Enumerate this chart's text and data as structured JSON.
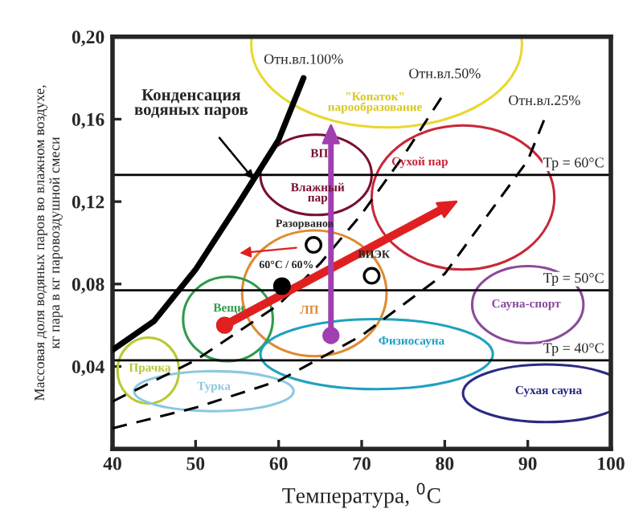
{
  "chart_data": {
    "type": "line",
    "xlabel": "Температура, $^{0}$С",
    "ylabel": "Массовая доля водяных паров во влажном воздухе,\nкг пара в кг паровоздушной смеси",
    "xlim": [
      40,
      100
    ],
    "ylim": [
      0,
      0.2
    ],
    "xticks": [
      40,
      50,
      60,
      70,
      80,
      90,
      100
    ],
    "yticks": [
      {
        "value": 0.04,
        "label": "0,04"
      },
      {
        "value": 0.08,
        "label": "0,08"
      },
      {
        "value": 0.12,
        "label": "0,12"
      },
      {
        "value": 0.16,
        "label": "0,16"
      },
      {
        "value": 0.2,
        "label": "0,20"
      }
    ],
    "series": [
      {
        "name": "Отн.вл.100%",
        "color": "#000000",
        "x": [
          40,
          45,
          50,
          55,
          60,
          63
        ],
        "values": [
          0.048,
          0.062,
          0.087,
          0.118,
          0.15,
          0.18
        ]
      },
      {
        "name": "Отн.вл.50%",
        "color": "#000000",
        "line_style": "dashed",
        "x": [
          40,
          50,
          60,
          65,
          70,
          75,
          80
        ],
        "values": [
          0.023,
          0.043,
          0.07,
          0.09,
          0.114,
          0.142,
          0.173
        ]
      },
      {
        "name": "Отн.вл.25%",
        "color": "#000000",
        "line_style": "dashed",
        "x": [
          40,
          50,
          60,
          70,
          80,
          90,
          92
        ],
        "values": [
          0.01,
          0.02,
          0.033,
          0.055,
          0.085,
          0.14,
          0.16
        ]
      },
      {
        "type": "scatter",
        "color": "#000000",
        "x": [
          60.4
        ],
        "values": [
          0.079
        ]
      },
      {
        "type": "scatter",
        "color": "#ffffff",
        "x": [
          64.2,
          71.2
        ],
        "values": [
          0.099,
          0.084
        ]
      }
    ],
    "ref_lines": [
      {
        "axis": "y",
        "value": 0.133
      },
      {
        "axis": "y",
        "value": 0.077
      },
      {
        "axis": "y",
        "value": 0.043
      }
    ],
    "annotations": [
      {
        "text": "Конденсация\nводяных паров",
        "x": 57,
        "y": 0.1308
      },
      {
        "text": "Разорванов",
        "x": 64.2,
        "y": 0.099
      },
      {
        "text": "60°С / 60%",
        "x": 60.4,
        "y": 0.079
      },
      {
        "text": "ВИЭК",
        "x": 71.2,
        "y": 0.084
      },
      "\"Копаток\"\nпарообразование",
      "ВП",
      "Влажный\nпар",
      "ЛП",
      "Сухой пар",
      "Вещи",
      "Прачка",
      "Турка",
      "Физиосауна",
      "Сауна-спорт",
      "Сухая сауна",
      "Тр = 60°С",
      "Тр = 50°С",
      "Тр = 40°С"
    ]
  }
}
